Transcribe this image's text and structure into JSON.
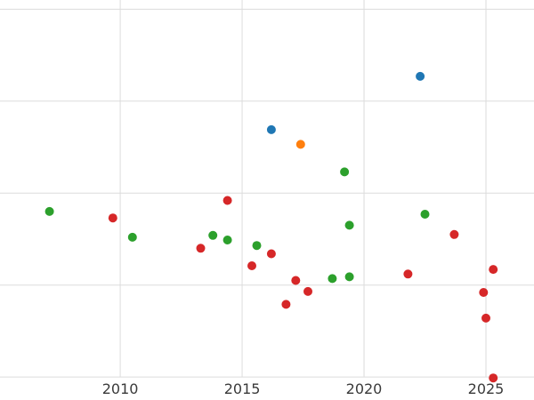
{
  "chart_data": {
    "type": "scatter",
    "title": "",
    "xlabel": "",
    "ylabel": "",
    "grid": true,
    "legend": "none",
    "xlim": [
      2005.07,
      2026.97
    ],
    "ylim": [
      -0.25,
      4.1
    ],
    "x_ticks": [
      2010,
      2015,
      2020,
      2025
    ],
    "x_tick_labels": [
      "2010",
      "2015",
      "2020",
      "2025"
    ],
    "y_gridlines": [
      0,
      1,
      2,
      3,
      4
    ],
    "series": [
      {
        "name": "red",
        "color": "#d62728",
        "points": [
          [
            2009.7,
            1.73
          ],
          [
            2013.3,
            1.4
          ],
          [
            2014.4,
            1.92
          ],
          [
            2015.4,
            1.21
          ],
          [
            2016.2,
            1.34
          ],
          [
            2016.8,
            0.79
          ],
          [
            2017.2,
            1.05
          ],
          [
            2017.7,
            0.93
          ],
          [
            2021.8,
            1.12
          ],
          [
            2023.7,
            1.55
          ],
          [
            2024.9,
            0.92
          ],
          [
            2025.0,
            0.64
          ],
          [
            2025.3,
            1.17
          ],
          [
            2025.3,
            -0.01
          ]
        ]
      },
      {
        "name": "green",
        "color": "#2ca02c",
        "points": [
          [
            2007.1,
            1.8
          ],
          [
            2010.5,
            1.52
          ],
          [
            2013.8,
            1.54
          ],
          [
            2014.4,
            1.49
          ],
          [
            2015.6,
            1.43
          ],
          [
            2018.7,
            1.07
          ],
          [
            2019.2,
            2.23
          ],
          [
            2019.4,
            1.65
          ],
          [
            2019.4,
            1.09
          ],
          [
            2022.5,
            1.77
          ]
        ]
      },
      {
        "name": "blue",
        "color": "#1f77b4",
        "points": [
          [
            2016.2,
            2.69
          ],
          [
            2022.3,
            3.27
          ]
        ]
      },
      {
        "name": "orange",
        "color": "#ff7f0e",
        "points": [
          [
            2017.4,
            2.53
          ]
        ]
      }
    ]
  },
  "style": {
    "grid_color": "#dcdcdc",
    "tick_label_color": "#3a3a3a",
    "background_color": "#ffffff",
    "marker_radius": 5,
    "tick_font_size": 16
  }
}
